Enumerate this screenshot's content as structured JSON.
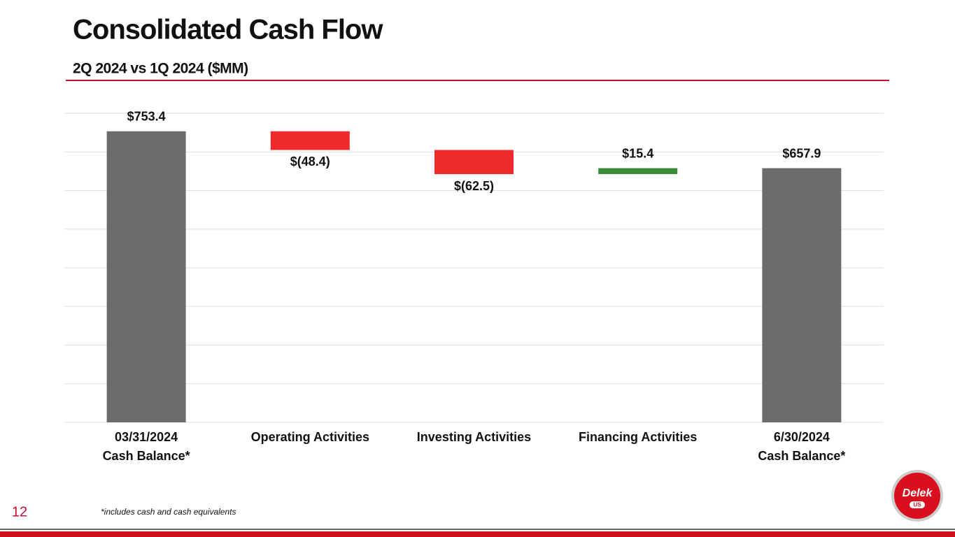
{
  "chart_data": {
    "type": "waterfall",
    "title": "Consolidated Cash Flow",
    "subtitle": "2Q 2024 vs 1Q 2024 ($MM)",
    "categories": [
      "03/31/2024\nCash Balance*",
      "Operating Activities",
      "Investing Activities",
      "Financing Activities",
      "6/30/2024\nCash Balance*"
    ],
    "values": [
      753.4,
      -48.4,
      -62.5,
      15.4,
      657.9
    ],
    "value_labels": [
      "$753.4",
      "$(48.4)",
      "$(62.5)",
      "$15.4",
      "$657.9"
    ],
    "is_total": [
      true,
      false,
      false,
      false,
      true
    ],
    "colors": {
      "total": "#6b6b6b",
      "decrease": "#ee2a2a",
      "increase": "#3a8a3a"
    },
    "ylim": [
      0,
      800
    ],
    "yticks": [
      0,
      100,
      200,
      300,
      400,
      500,
      600,
      700,
      800
    ],
    "grid": true,
    "footnote": "*includes cash and cash equivalents"
  },
  "page_number": "12",
  "logo": {
    "name": "Delek",
    "sub": "US"
  }
}
